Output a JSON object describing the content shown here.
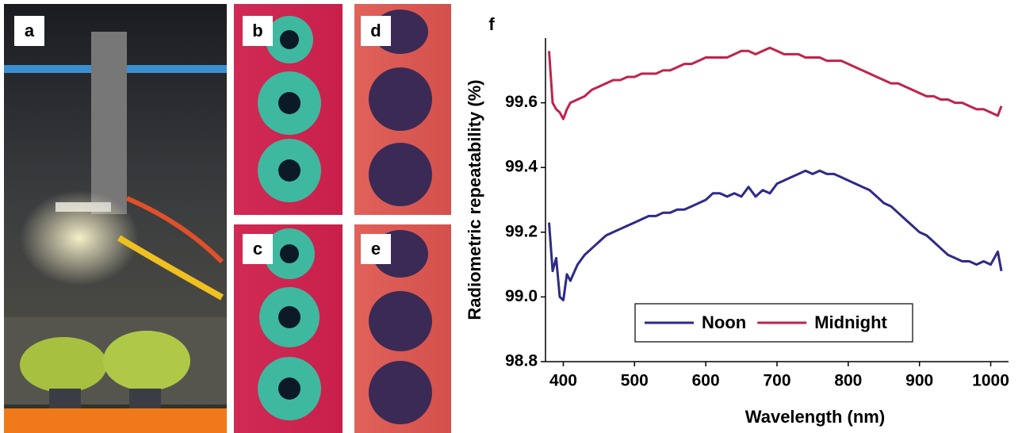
{
  "panel_labels": [
    "a",
    "b",
    "c",
    "d",
    "e"
  ],
  "chart_data": {
    "type": "line",
    "panel_label": "f",
    "x_label": "Wavelength (nm)",
    "y_label": "Radiometric repeatability (%)",
    "xlim": [
      375,
      1025
    ],
    "ylim": [
      98.8,
      99.8
    ],
    "xticks": [
      400,
      500,
      600,
      700,
      800,
      900,
      1000
    ],
    "yticks": [
      {
        "value": 98.8,
        "label": "98.8"
      },
      {
        "value": 99.0,
        "label": "99.0"
      },
      {
        "value": 99.2,
        "label": "99.2"
      },
      {
        "value": 99.4,
        "label": "99.4"
      },
      {
        "value": 99.6,
        "label": "99.6"
      }
    ],
    "x": [
      380,
      385,
      390,
      395,
      400,
      405,
      410,
      420,
      430,
      440,
      450,
      460,
      470,
      480,
      490,
      500,
      510,
      520,
      530,
      540,
      550,
      560,
      570,
      580,
      590,
      600,
      610,
      620,
      630,
      640,
      650,
      660,
      670,
      680,
      690,
      700,
      710,
      720,
      730,
      740,
      750,
      760,
      770,
      780,
      790,
      800,
      810,
      820,
      830,
      840,
      850,
      860,
      870,
      880,
      890,
      900,
      910,
      920,
      930,
      940,
      950,
      960,
      970,
      980,
      990,
      1000,
      1010,
      1015
    ],
    "series": [
      {
        "name": "Noon",
        "color": "#2e2a86",
        "values": [
          99.23,
          99.08,
          99.12,
          99.0,
          98.99,
          99.07,
          99.05,
          99.1,
          99.13,
          99.15,
          99.17,
          99.19,
          99.2,
          99.21,
          99.22,
          99.23,
          99.24,
          99.25,
          99.25,
          99.26,
          99.26,
          99.27,
          99.27,
          99.28,
          99.29,
          99.3,
          99.32,
          99.32,
          99.31,
          99.32,
          99.31,
          99.34,
          99.31,
          99.33,
          99.32,
          99.35,
          99.36,
          99.37,
          99.38,
          99.39,
          99.38,
          99.39,
          99.38,
          99.38,
          99.37,
          99.36,
          99.35,
          99.34,
          99.33,
          99.31,
          99.29,
          99.28,
          99.26,
          99.24,
          99.22,
          99.2,
          99.19,
          99.17,
          99.15,
          99.13,
          99.12,
          99.11,
          99.11,
          99.1,
          99.11,
          99.1,
          99.14,
          99.08
        ]
      },
      {
        "name": "Midnight",
        "color": "#c0234b",
        "values": [
          99.76,
          99.6,
          99.58,
          99.57,
          99.55,
          99.58,
          99.6,
          99.61,
          99.62,
          99.64,
          99.65,
          99.66,
          99.67,
          99.67,
          99.68,
          99.68,
          99.69,
          99.69,
          99.69,
          99.7,
          99.7,
          99.71,
          99.72,
          99.72,
          99.73,
          99.74,
          99.74,
          99.74,
          99.74,
          99.75,
          99.76,
          99.76,
          99.75,
          99.76,
          99.77,
          99.76,
          99.75,
          99.75,
          99.75,
          99.74,
          99.74,
          99.74,
          99.73,
          99.73,
          99.73,
          99.72,
          99.71,
          99.7,
          99.69,
          99.68,
          99.67,
          99.66,
          99.66,
          99.65,
          99.64,
          99.63,
          99.62,
          99.62,
          99.61,
          99.61,
          99.6,
          99.6,
          99.59,
          99.58,
          99.58,
          99.57,
          99.56,
          99.59
        ]
      }
    ]
  }
}
